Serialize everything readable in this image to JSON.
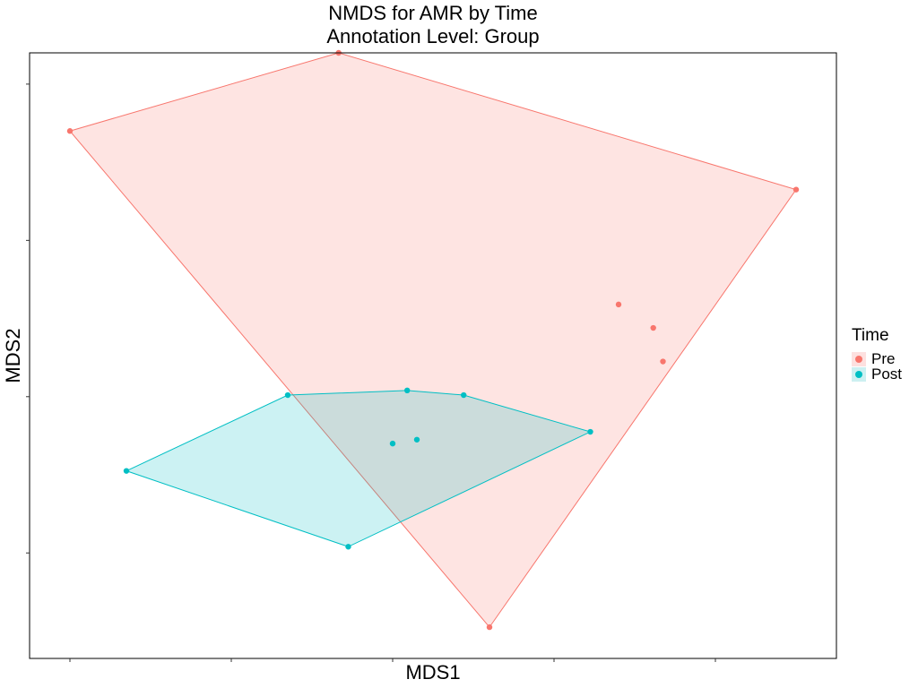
{
  "chart_data": {
    "type": "scatter",
    "title": "NMDS for AMR by Time",
    "subtitle": "Annotation Level: Group",
    "xlabel": "MDS1",
    "ylabel": "MDS2",
    "grid": false,
    "xlim": [
      -0.45,
      0.55
    ],
    "ylim": [
      -0.375,
      0.4
    ],
    "legend": {
      "title": "Time",
      "position": "right"
    },
    "series": [
      {
        "name": "Pre",
        "color": "#F8766D",
        "fill": "#FDE0DF",
        "points": [
          {
            "x": -0.4,
            "y": 0.3
          },
          {
            "x": -0.067,
            "y": 0.4
          },
          {
            "x": 0.5,
            "y": 0.225
          },
          {
            "x": 0.28,
            "y": 0.078
          },
          {
            "x": 0.323,
            "y": 0.048
          },
          {
            "x": 0.335,
            "y": 0.005
          },
          {
            "x": 0.12,
            "y": -0.335
          }
        ],
        "hull": [
          0,
          1,
          2,
          6
        ]
      },
      {
        "name": "Post",
        "color": "#00BFC4",
        "fill": "#CCF0F1",
        "points": [
          {
            "x": -0.33,
            "y": -0.135
          },
          {
            "x": -0.13,
            "y": -0.038
          },
          {
            "x": 0.018,
            "y": -0.032
          },
          {
            "x": 0.088,
            "y": -0.038
          },
          {
            "x": 0.245,
            "y": -0.085
          },
          {
            "x": -0.055,
            "y": -0.232
          },
          {
            "x": 0.0,
            "y": -0.1
          },
          {
            "x": 0.03,
            "y": -0.095
          }
        ],
        "hull": [
          0,
          1,
          2,
          3,
          4,
          5
        ]
      }
    ]
  }
}
